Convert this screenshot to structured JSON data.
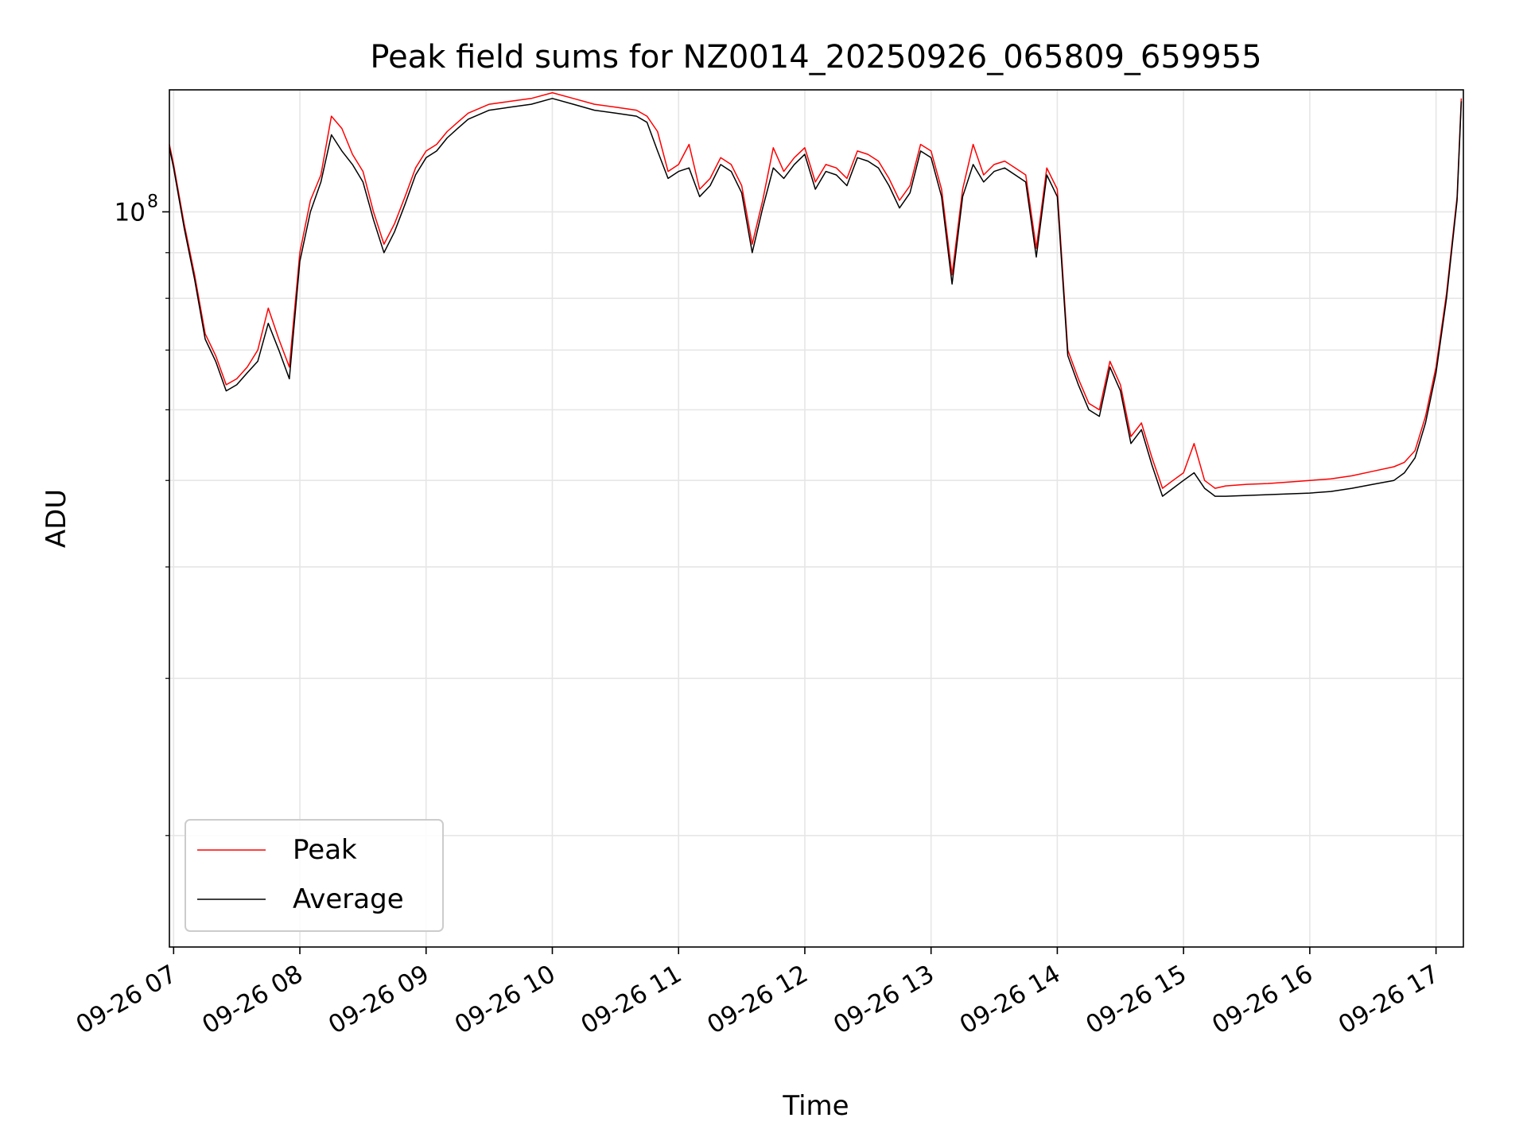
{
  "chart_data": {
    "type": "line",
    "title": "Peak field sums for NZ0014_20250926_065809_659955",
    "xlabel": "Time",
    "ylabel": "ADU",
    "yscale": "log",
    "xlim": [
      "2025-09-26T06:58:00",
      "2025-09-26T17:13:00"
    ],
    "ylim": [
      15000000,
      137000000
    ],
    "x_ticks": [
      "09-26 07",
      "09-26 08",
      "09-26 09",
      "09-26 10",
      "09-26 11",
      "09-26 12",
      "09-26 13",
      "09-26 14",
      "09-26 15",
      "09-26 16",
      "09-26 17"
    ],
    "x_tick_times": [
      "2025-09-26T07:00",
      "2025-09-26T08:00",
      "2025-09-26T09:00",
      "2025-09-26T10:00",
      "2025-09-26T11:00",
      "2025-09-26T12:00",
      "2025-09-26T13:00",
      "2025-09-26T14:00",
      "2025-09-26T15:00",
      "2025-09-26T16:00",
      "2025-09-26T17:00"
    ],
    "y_major_ticks": [
      {
        "value": 100000000,
        "base": "10",
        "exp": "8"
      }
    ],
    "y_minor_ticks": [
      20000000,
      30000000,
      40000000,
      50000000,
      60000000,
      70000000,
      80000000,
      90000000
    ],
    "grid": true,
    "legend": {
      "position": "lower-left",
      "entries": [
        "Peak",
        "Average"
      ]
    },
    "colors": {
      "Peak": "#ff0000",
      "Average": "#000000"
    },
    "series": [
      {
        "name": "Average",
        "x": [
          "2025-09-26T06:58",
          "2025-09-26T07:00",
          "2025-09-26T07:05",
          "2025-09-26T07:10",
          "2025-09-26T07:15",
          "2025-09-26T07:20",
          "2025-09-26T07:25",
          "2025-09-26T07:30",
          "2025-09-26T07:35",
          "2025-09-26T07:40",
          "2025-09-26T07:45",
          "2025-09-26T07:50",
          "2025-09-26T07:55",
          "2025-09-26T08:00",
          "2025-09-26T08:05",
          "2025-09-26T08:10",
          "2025-09-26T08:15",
          "2025-09-26T08:20",
          "2025-09-26T08:25",
          "2025-09-26T08:30",
          "2025-09-26T08:35",
          "2025-09-26T08:40",
          "2025-09-26T08:45",
          "2025-09-26T08:50",
          "2025-09-26T08:55",
          "2025-09-26T09:00",
          "2025-09-26T09:05",
          "2025-09-26T09:10",
          "2025-09-26T09:15",
          "2025-09-26T09:20",
          "2025-09-26T09:30",
          "2025-09-26T09:40",
          "2025-09-26T09:50",
          "2025-09-26T10:00",
          "2025-09-26T10:10",
          "2025-09-26T10:20",
          "2025-09-26T10:30",
          "2025-09-26T10:40",
          "2025-09-26T10:45",
          "2025-09-26T10:50",
          "2025-09-26T10:55",
          "2025-09-26T11:00",
          "2025-09-26T11:05",
          "2025-09-26T11:10",
          "2025-09-26T11:15",
          "2025-09-26T11:20",
          "2025-09-26T11:25",
          "2025-09-26T11:30",
          "2025-09-26T11:35",
          "2025-09-26T11:40",
          "2025-09-26T11:45",
          "2025-09-26T11:50",
          "2025-09-26T11:55",
          "2025-09-26T12:00",
          "2025-09-26T12:05",
          "2025-09-26T12:10",
          "2025-09-26T12:15",
          "2025-09-26T12:20",
          "2025-09-26T12:25",
          "2025-09-26T12:30",
          "2025-09-26T12:35",
          "2025-09-26T12:40",
          "2025-09-26T12:45",
          "2025-09-26T12:50",
          "2025-09-26T12:55",
          "2025-09-26T13:00",
          "2025-09-26T13:05",
          "2025-09-26T13:10",
          "2025-09-26T13:15",
          "2025-09-26T13:20",
          "2025-09-26T13:25",
          "2025-09-26T13:30",
          "2025-09-26T13:35",
          "2025-09-26T13:40",
          "2025-09-26T13:45",
          "2025-09-26T13:50",
          "2025-09-26T13:55",
          "2025-09-26T14:00",
          "2025-09-26T14:05",
          "2025-09-26T14:10",
          "2025-09-26T14:15",
          "2025-09-26T14:20",
          "2025-09-26T14:25",
          "2025-09-26T14:30",
          "2025-09-26T14:35",
          "2025-09-26T14:40",
          "2025-09-26T14:45",
          "2025-09-26T14:50",
          "2025-09-26T14:55",
          "2025-09-26T15:00",
          "2025-09-26T15:05",
          "2025-09-26T15:10",
          "2025-09-26T15:15",
          "2025-09-26T15:20",
          "2025-09-26T15:30",
          "2025-09-26T15:40",
          "2025-09-26T15:50",
          "2025-09-26T16:00",
          "2025-09-26T16:10",
          "2025-09-26T16:20",
          "2025-09-26T16:30",
          "2025-09-26T16:40",
          "2025-09-26T16:45",
          "2025-09-26T16:50",
          "2025-09-26T16:55",
          "2025-09-26T17:00",
          "2025-09-26T17:05",
          "2025-09-26T17:10",
          "2025-09-26T17:12"
        ],
        "values": [
          118000000,
          112000000,
          96000000,
          84000000,
          72000000,
          68000000,
          63000000,
          64000000,
          66000000,
          68000000,
          75000000,
          70000000,
          65000000,
          88000000,
          100000000,
          108000000,
          122000000,
          117000000,
          113000000,
          108000000,
          98000000,
          90000000,
          95000000,
          102000000,
          110000000,
          115000000,
          117000000,
          121000000,
          124000000,
          127000000,
          130000000,
          131000000,
          132000000,
          134000000,
          132000000,
          130000000,
          129000000,
          128000000,
          126000000,
          117000000,
          109000000,
          111000000,
          112000000,
          104000000,
          107000000,
          113000000,
          111000000,
          105000000,
          90000000,
          101000000,
          112000000,
          109000000,
          113000000,
          116000000,
          106000000,
          111000000,
          110000000,
          107000000,
          115000000,
          114000000,
          112000000,
          107000000,
          101000000,
          105000000,
          117000000,
          115000000,
          104000000,
          83000000,
          104000000,
          113000000,
          108000000,
          111000000,
          112000000,
          110000000,
          108000000,
          89000000,
          110000000,
          104000000,
          69000000,
          64000000,
          60000000,
          59000000,
          67000000,
          63000000,
          55000000,
          57000000,
          52000000,
          48000000,
          49000000,
          50000000,
          51000000,
          49000000,
          48000000,
          48000000,
          48100000,
          48200000,
          48300000,
          48400000,
          48600000,
          49000000,
          49500000,
          50000000,
          51000000,
          53000000,
          58000000,
          66000000,
          80000000,
          103000000,
          133000000
        ]
      },
      {
        "name": "Peak",
        "x": [
          "2025-09-26T06:58",
          "2025-09-26T07:00",
          "2025-09-26T07:05",
          "2025-09-26T07:10",
          "2025-09-26T07:15",
          "2025-09-26T07:20",
          "2025-09-26T07:25",
          "2025-09-26T07:30",
          "2025-09-26T07:35",
          "2025-09-26T07:40",
          "2025-09-26T07:45",
          "2025-09-26T07:50",
          "2025-09-26T07:55",
          "2025-09-26T08:00",
          "2025-09-26T08:05",
          "2025-09-26T08:10",
          "2025-09-26T08:15",
          "2025-09-26T08:20",
          "2025-09-26T08:25",
          "2025-09-26T08:30",
          "2025-09-26T08:35",
          "2025-09-26T08:40",
          "2025-09-26T08:45",
          "2025-09-26T08:50",
          "2025-09-26T08:55",
          "2025-09-26T09:00",
          "2025-09-26T09:05",
          "2025-09-26T09:10",
          "2025-09-26T09:15",
          "2025-09-26T09:20",
          "2025-09-26T09:30",
          "2025-09-26T09:40",
          "2025-09-26T09:50",
          "2025-09-26T10:00",
          "2025-09-26T10:10",
          "2025-09-26T10:20",
          "2025-09-26T10:30",
          "2025-09-26T10:40",
          "2025-09-26T10:45",
          "2025-09-26T10:50",
          "2025-09-26T10:55",
          "2025-09-26T11:00",
          "2025-09-26T11:05",
          "2025-09-26T11:10",
          "2025-09-26T11:15",
          "2025-09-26T11:20",
          "2025-09-26T11:25",
          "2025-09-26T11:30",
          "2025-09-26T11:35",
          "2025-09-26T11:40",
          "2025-09-26T11:45",
          "2025-09-26T11:50",
          "2025-09-26T11:55",
          "2025-09-26T12:00",
          "2025-09-26T12:05",
          "2025-09-26T12:10",
          "2025-09-26T12:15",
          "2025-09-26T12:20",
          "2025-09-26T12:25",
          "2025-09-26T12:30",
          "2025-09-26T12:35",
          "2025-09-26T12:40",
          "2025-09-26T12:45",
          "2025-09-26T12:50",
          "2025-09-26T12:55",
          "2025-09-26T13:00",
          "2025-09-26T13:05",
          "2025-09-26T13:10",
          "2025-09-26T13:15",
          "2025-09-26T13:20",
          "2025-09-26T13:25",
          "2025-09-26T13:30",
          "2025-09-26T13:35",
          "2025-09-26T13:40",
          "2025-09-26T13:45",
          "2025-09-26T13:50",
          "2025-09-26T13:55",
          "2025-09-26T14:00",
          "2025-09-26T14:05",
          "2025-09-26T14:10",
          "2025-09-26T14:15",
          "2025-09-26T14:20",
          "2025-09-26T14:25",
          "2025-09-26T14:30",
          "2025-09-26T14:35",
          "2025-09-26T14:40",
          "2025-09-26T14:45",
          "2025-09-26T14:50",
          "2025-09-26T14:55",
          "2025-09-26T15:00",
          "2025-09-26T15:05",
          "2025-09-26T15:10",
          "2025-09-26T15:15",
          "2025-09-26T15:20",
          "2025-09-26T15:30",
          "2025-09-26T15:40",
          "2025-09-26T15:50",
          "2025-09-26T16:00",
          "2025-09-26T16:10",
          "2025-09-26T16:20",
          "2025-09-26T16:30",
          "2025-09-26T16:40",
          "2025-09-26T16:45",
          "2025-09-26T16:50",
          "2025-09-26T16:55",
          "2025-09-26T17:00",
          "2025-09-26T17:05",
          "2025-09-26T17:10",
          "2025-09-26T17:12"
        ],
        "values": [
          119000000,
          113000000,
          97000000,
          85000000,
          73000000,
          69000000,
          64000000,
          65000000,
          67000000,
          70000000,
          78000000,
          72000000,
          67000000,
          90000000,
          103000000,
          110000000,
          128000000,
          124000000,
          116000000,
          111000000,
          100000000,
          92000000,
          97000000,
          104000000,
          112000000,
          117000000,
          119000000,
          123000000,
          126000000,
          129000000,
          132000000,
          133000000,
          134000000,
          136000000,
          134000000,
          132000000,
          131000000,
          130000000,
          128000000,
          123000000,
          111000000,
          113000000,
          119000000,
          106000000,
          109000000,
          115000000,
          113000000,
          107000000,
          92000000,
          103000000,
          118000000,
          111000000,
          115000000,
          118000000,
          108000000,
          113000000,
          112000000,
          109000000,
          117000000,
          116000000,
          114000000,
          109000000,
          103000000,
          107000000,
          119000000,
          117000000,
          106000000,
          85000000,
          106000000,
          119000000,
          110000000,
          113000000,
          114000000,
          112000000,
          110000000,
          91000000,
          112000000,
          106000000,
          70000000,
          65000000,
          61000000,
          60000000,
          68000000,
          64000000,
          56000000,
          58000000,
          53000000,
          49000000,
          50000000,
          51000000,
          55000000,
          50000000,
          49000000,
          49300000,
          49500000,
          49600000,
          49800000,
          50000000,
          50200000,
          50600000,
          51200000,
          51800000,
          52400000,
          54000000,
          59000000,
          67000000,
          81000000,
          104000000,
          134000000
        ]
      }
    ]
  }
}
